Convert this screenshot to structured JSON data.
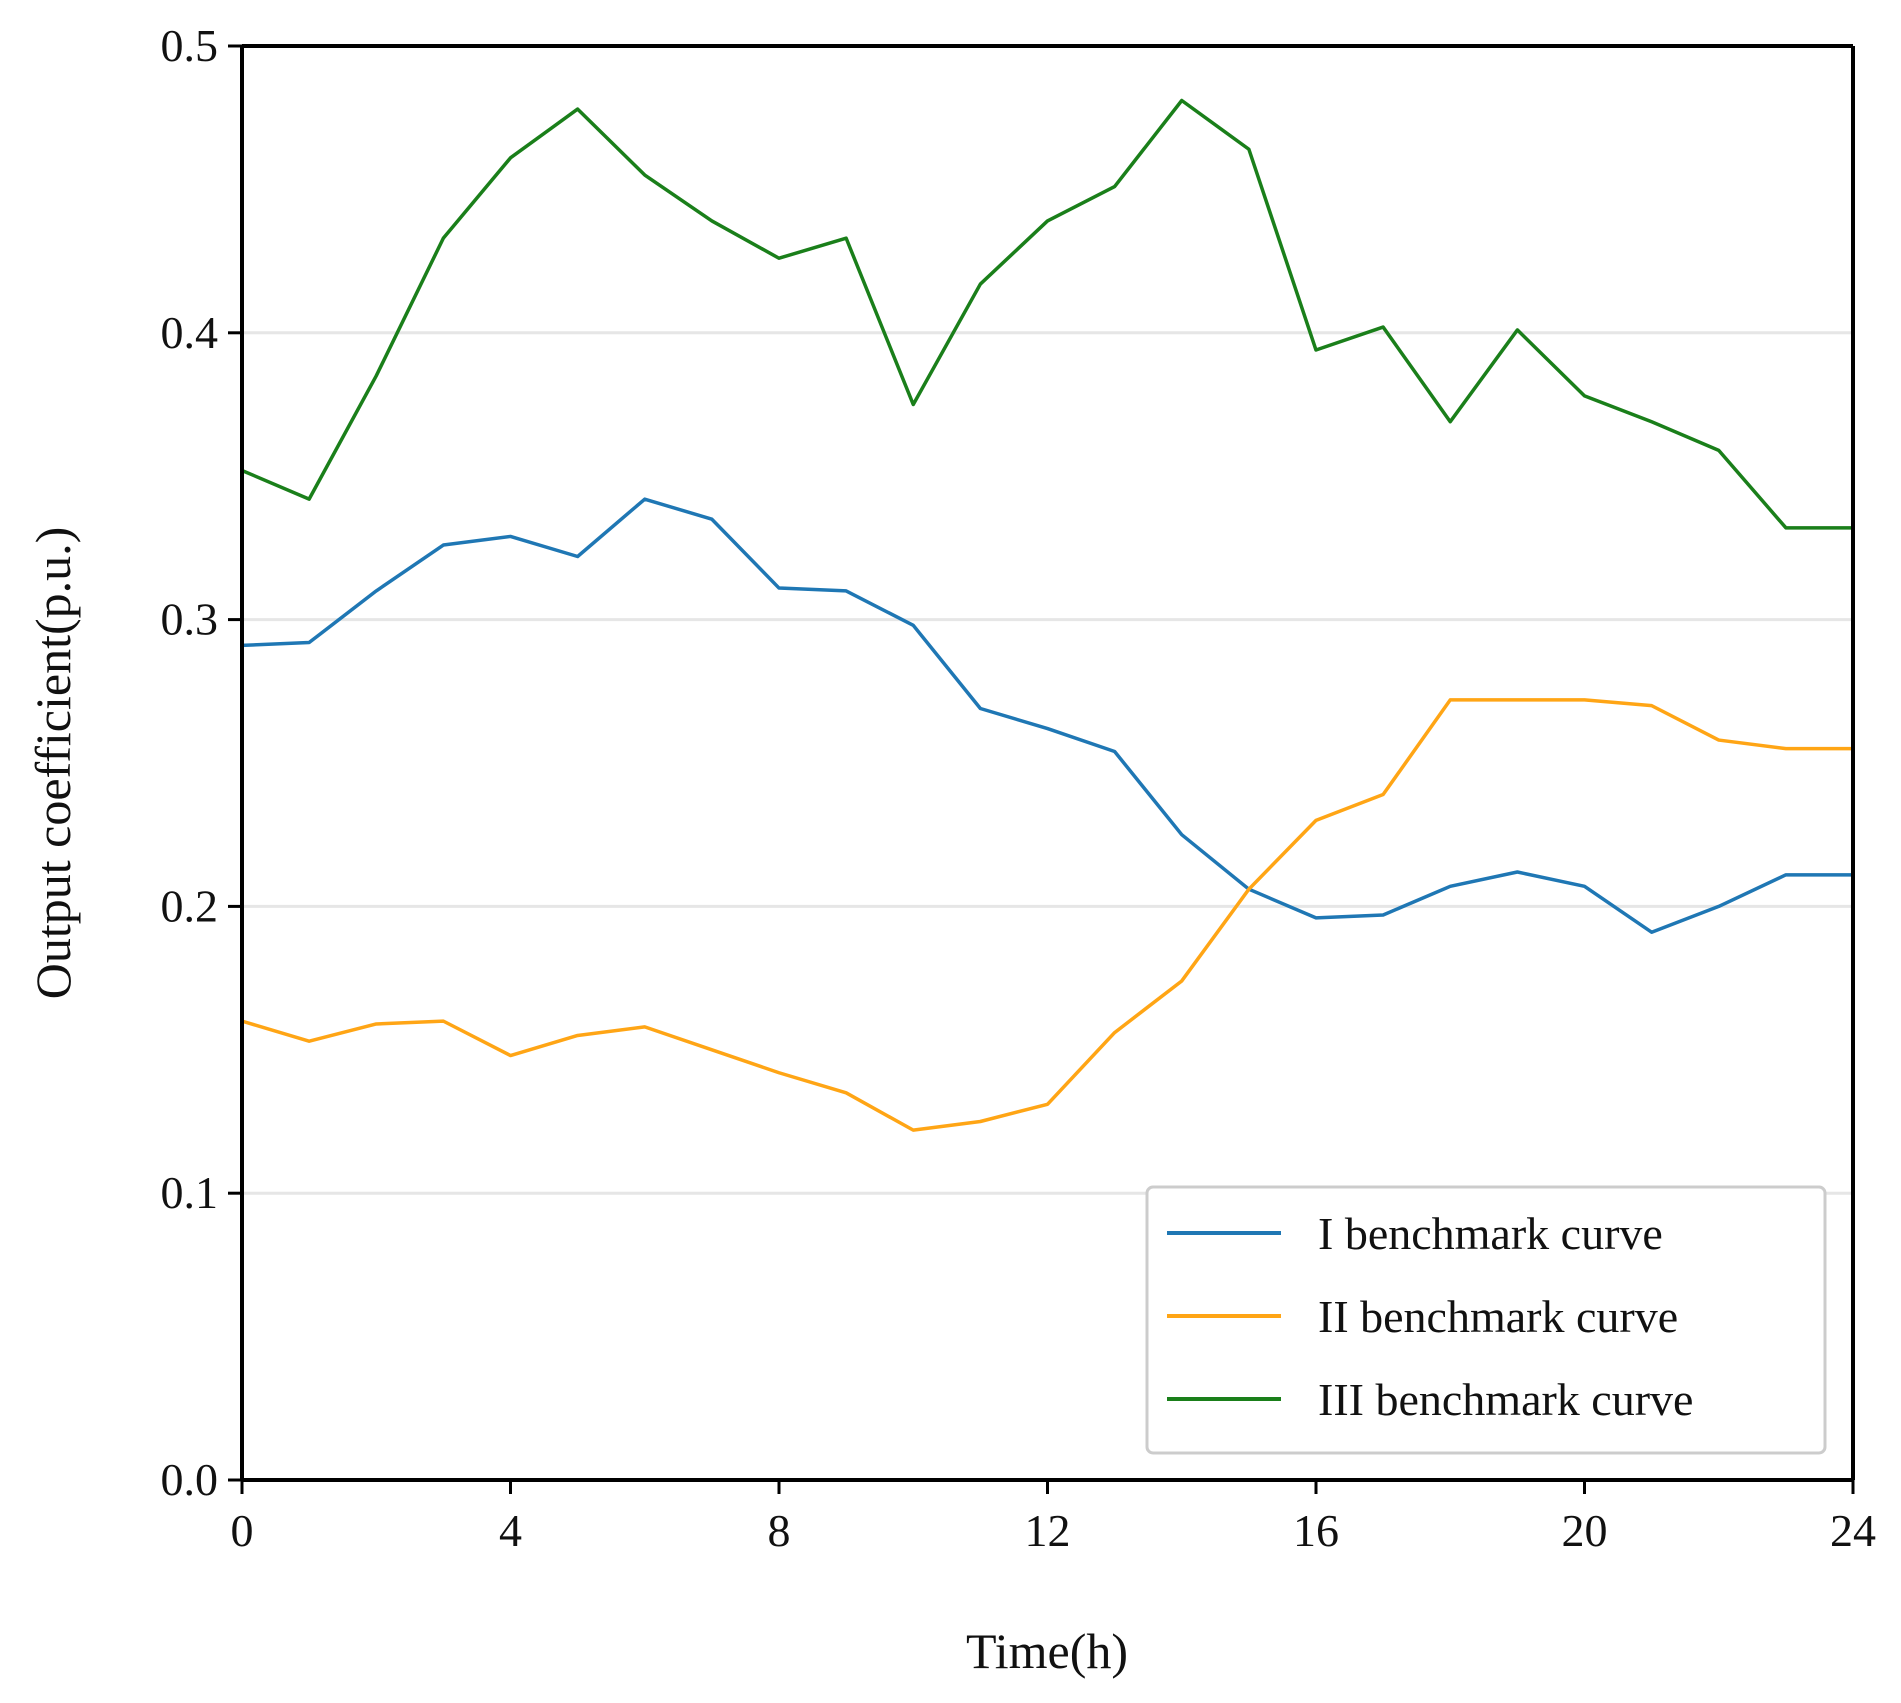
{
  "chart_data": {
    "type": "line",
    "title": "",
    "xlabel": "Time(h)",
    "ylabel": "Output coefficient(p.u.)",
    "xlim": [
      0,
      24
    ],
    "ylim": [
      0.0,
      0.5
    ],
    "xticks": [
      0,
      4,
      8,
      12,
      16,
      20,
      24
    ],
    "xtick_labels": [
      "0",
      "4",
      "8",
      "12",
      "16",
      "20",
      "24"
    ],
    "yticks": [
      0.0,
      0.1,
      0.2,
      0.3,
      0.4,
      0.5
    ],
    "ytick_labels": [
      "0.0",
      "0.1",
      "0.2",
      "0.3",
      "0.4",
      "0.5"
    ],
    "grid": "horizontal",
    "legend_position": "bottom-right",
    "x": [
      0,
      1,
      2,
      3,
      4,
      5,
      6,
      7,
      8,
      9,
      10,
      11,
      12,
      13,
      14,
      15,
      16,
      17,
      18,
      19,
      20,
      21,
      22,
      23,
      24
    ],
    "series": [
      {
        "name": "I benchmark curve",
        "color": "#1f77b4",
        "values": [
          0.291,
          0.292,
          0.31,
          0.326,
          0.329,
          0.322,
          0.342,
          0.335,
          0.311,
          0.31,
          0.298,
          0.269,
          0.262,
          0.254,
          0.225,
          0.206,
          0.196,
          0.197,
          0.207,
          0.212,
          0.207,
          0.191,
          0.2,
          0.211,
          0.211
        ]
      },
      {
        "name": "II benchmark curve",
        "color": "#ffa515",
        "values": [
          0.16,
          0.153,
          0.159,
          0.16,
          0.148,
          0.155,
          0.158,
          0.15,
          0.142,
          0.135,
          0.122,
          0.125,
          0.131,
          0.156,
          0.174,
          0.206,
          0.23,
          0.239,
          0.272,
          0.272,
          0.272,
          0.27,
          0.258,
          0.255,
          0.255
        ]
      },
      {
        "name": "III benchmark curve",
        "color": "#1a7f1a",
        "values": [
          0.352,
          0.342,
          0.385,
          0.433,
          0.461,
          0.478,
          0.455,
          0.439,
          0.426,
          0.433,
          0.375,
          0.417,
          0.439,
          0.451,
          0.481,
          0.464,
          0.394,
          0.402,
          0.369,
          0.401,
          0.378,
          0.369,
          0.359,
          0.332,
          0.332
        ]
      }
    ]
  }
}
